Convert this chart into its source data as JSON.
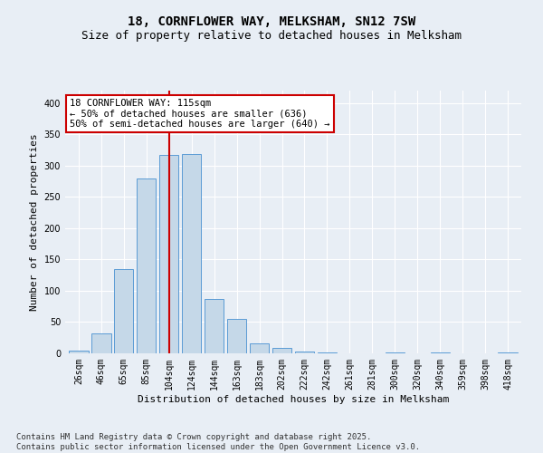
{
  "title": "18, CORNFLOWER WAY, MELKSHAM, SN12 7SW",
  "subtitle": "Size of property relative to detached houses in Melksham",
  "xlabel": "Distribution of detached houses by size in Melksham",
  "ylabel": "Number of detached properties",
  "categories": [
    "26sqm",
    "46sqm",
    "65sqm",
    "85sqm",
    "104sqm",
    "124sqm",
    "144sqm",
    "163sqm",
    "183sqm",
    "202sqm",
    "222sqm",
    "242sqm",
    "261sqm",
    "281sqm",
    "300sqm",
    "320sqm",
    "340sqm",
    "359sqm",
    "398sqm",
    "418sqm"
  ],
  "values": [
    5,
    32,
    135,
    280,
    317,
    318,
    87,
    55,
    16,
    9,
    3,
    1,
    0,
    0,
    1,
    0,
    1,
    0,
    0,
    2
  ],
  "bar_color": "#c5d8e8",
  "bar_edge_color": "#5b9bd5",
  "vline_x": 4.0,
  "vline_color": "#cc0000",
  "annotation_text": "18 CORNFLOWER WAY: 115sqm\n← 50% of detached houses are smaller (636)\n50% of semi-detached houses are larger (640) →",
  "annotation_box_color": "#ffffff",
  "annotation_box_edge": "#cc0000",
  "ylim": [
    0,
    420
  ],
  "yticks": [
    0,
    50,
    100,
    150,
    200,
    250,
    300,
    350,
    400
  ],
  "footer_text": "Contains HM Land Registry data © Crown copyright and database right 2025.\nContains public sector information licensed under the Open Government Licence v3.0.",
  "bg_color": "#e8eef5",
  "plot_bg_color": "#e8eef5",
  "title_fontsize": 10,
  "subtitle_fontsize": 9,
  "axis_fontsize": 8,
  "tick_fontsize": 7,
  "footer_fontsize": 6.5,
  "annotation_fontsize": 7.5
}
